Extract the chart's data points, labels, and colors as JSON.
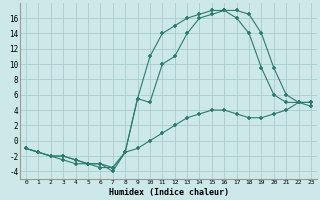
{
  "xlabel": "Humidex (Indice chaleur)",
  "background_color": "#cce8e8",
  "line_color": "#2d7a6e",
  "grid_color": "#aacccc",
  "xlim": [
    -0.5,
    23.5
  ],
  "ylim": [
    -5,
    18
  ],
  "xticks": [
    0,
    1,
    2,
    3,
    4,
    5,
    6,
    7,
    8,
    9,
    10,
    11,
    12,
    13,
    14,
    15,
    16,
    17,
    18,
    19,
    20,
    21,
    22,
    23
  ],
  "yticks": [
    -4,
    -2,
    0,
    2,
    4,
    6,
    8,
    10,
    12,
    14,
    16
  ],
  "series1_x": [
    0,
    1,
    2,
    3,
    4,
    5,
    6,
    7,
    8,
    9,
    10,
    11,
    12,
    13,
    14,
    15,
    16,
    17,
    18,
    19,
    20,
    21,
    22,
    23
  ],
  "series1_y": [
    -1,
    -1.5,
    -2,
    -2.5,
    -3,
    -3,
    -3,
    -3.5,
    -1.5,
    -1,
    0,
    1,
    2,
    3,
    3.5,
    4,
    4,
    3.5,
    3,
    3,
    3.5,
    4,
    5,
    5
  ],
  "series2_x": [
    0,
    1,
    2,
    3,
    4,
    5,
    6,
    7,
    8,
    9,
    10,
    11,
    12,
    13,
    14,
    15,
    16,
    17,
    18,
    19,
    20,
    21,
    22,
    23
  ],
  "series2_y": [
    -1,
    -1.5,
    -2,
    -2,
    -2.5,
    -3,
    -3,
    -4,
    -1.5,
    5.5,
    11,
    14,
    15,
    16,
    16.5,
    17,
    17,
    17,
    16.5,
    14,
    9.5,
    6,
    5,
    5
  ],
  "series3_x": [
    0,
    1,
    2,
    3,
    4,
    5,
    6,
    7,
    8,
    9,
    10,
    11,
    12,
    13,
    14,
    15,
    16,
    17,
    18,
    19,
    20,
    21,
    22,
    23
  ],
  "series3_y": [
    -1,
    -1.5,
    -2,
    -2,
    -2.5,
    -3,
    -3.5,
    -3.5,
    -1.5,
    5.5,
    5,
    10,
    11,
    14,
    16,
    16.5,
    17,
    16,
    14,
    9.5,
    6,
    5,
    5,
    4.5
  ]
}
